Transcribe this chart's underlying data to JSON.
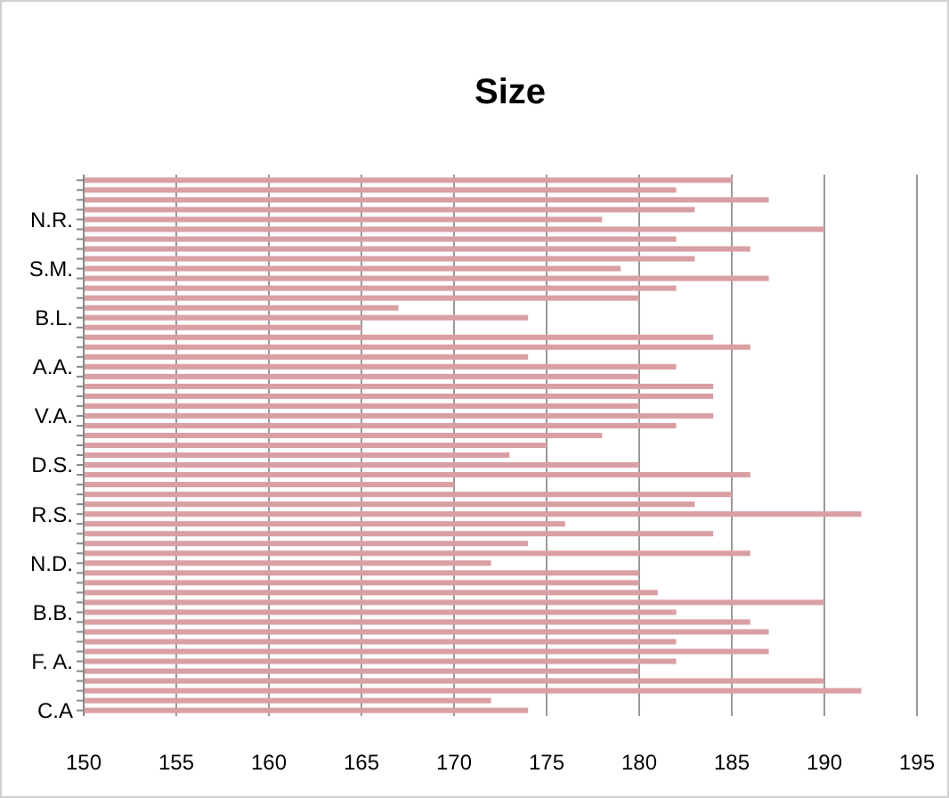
{
  "chart_data": {
    "type": "bar",
    "title": "Size",
    "orientation": "horizontal",
    "categories": [
      null,
      null,
      null,
      null,
      "N.R.",
      null,
      null,
      null,
      null,
      "S.M.",
      null,
      null,
      null,
      null,
      "B.L.",
      null,
      null,
      null,
      null,
      "A.A.",
      null,
      null,
      null,
      null,
      "V.A.",
      null,
      null,
      null,
      null,
      "D.S.",
      null,
      null,
      null,
      null,
      "R.S.",
      null,
      null,
      null,
      null,
      "N.D.",
      null,
      null,
      null,
      null,
      "B.B.",
      null,
      null,
      null,
      null,
      "F. A.",
      null,
      null,
      null,
      null,
      "C.A"
    ],
    "values": [
      185,
      182,
      187,
      183,
      178,
      190,
      182,
      186,
      183,
      179,
      187,
      182,
      180,
      167,
      174,
      165,
      184,
      186,
      174,
      182,
      180,
      184,
      184,
      180,
      184,
      182,
      178,
      175,
      173,
      180,
      186,
      170,
      185,
      183,
      192,
      176,
      184,
      174,
      186,
      172,
      180,
      180,
      181,
      190,
      182,
      186,
      187,
      182,
      187,
      182,
      180,
      190,
      192,
      172,
      174
    ],
    "color": "#d9a0a4",
    "xlim": [
      150,
      195
    ],
    "xticks": [
      150,
      155,
      160,
      165,
      170,
      175,
      180,
      185,
      190,
      195
    ],
    "grid": "x"
  }
}
